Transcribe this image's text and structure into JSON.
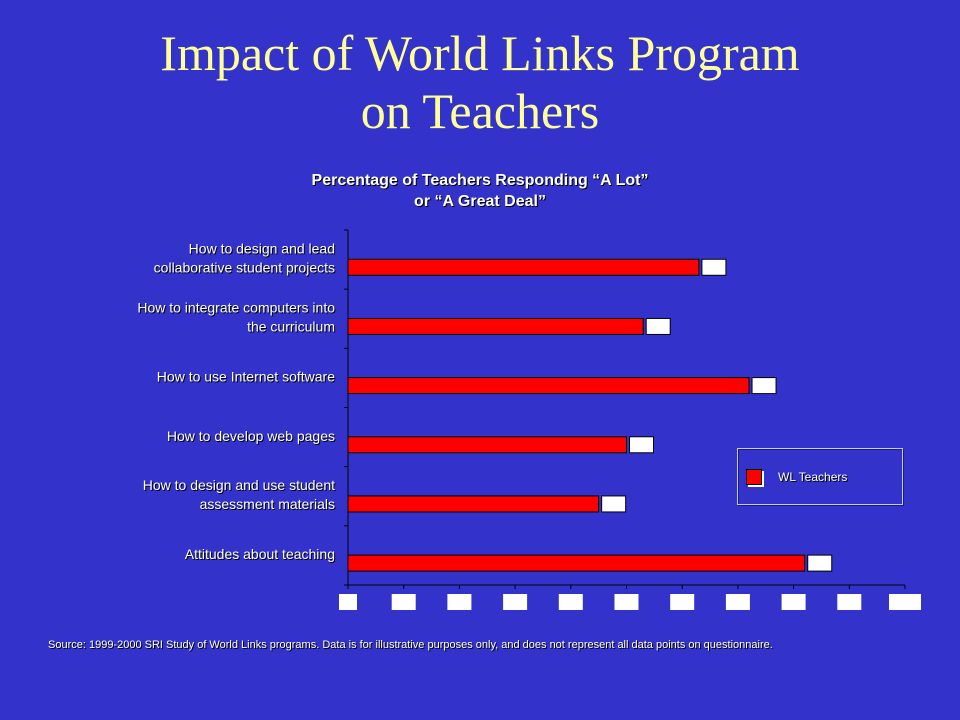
{
  "slide": {
    "title_line1": "Impact of World Links Program",
    "title_line2": "on Teachers",
    "source_note": "Source: 1999-2000 SRI Study of World Links programs.  Data is for illustrative purposes only, and does not represent all data points on questionnaire."
  },
  "colors": {
    "background": "#3333cc",
    "title": "#ffff99",
    "bar": "#ff0000",
    "text": "#ffffff"
  },
  "chart_data": {
    "type": "bar",
    "orientation": "horizontal",
    "title_line1": "Percentage of Teachers Responding “A Lot”",
    "title_line2": "or “A Great Deal”",
    "categories": [
      [
        "How to design and lead",
        "collaborative student projects"
      ],
      [
        "How to integrate computers into",
        "the curriculum"
      ],
      [
        "How to use Internet software"
      ],
      [
        "How to develop web pages"
      ],
      [
        "How to design and use student",
        "assessment materials"
      ],
      [
        "Attitudes about teaching"
      ]
    ],
    "series": [
      {
        "name": "WL Teachers",
        "values": [
          63,
          53,
          72,
          50,
          45,
          82
        ]
      }
    ],
    "xlim": [
      0,
      100
    ],
    "tick_count": 11,
    "grid": false,
    "legend": "right"
  }
}
